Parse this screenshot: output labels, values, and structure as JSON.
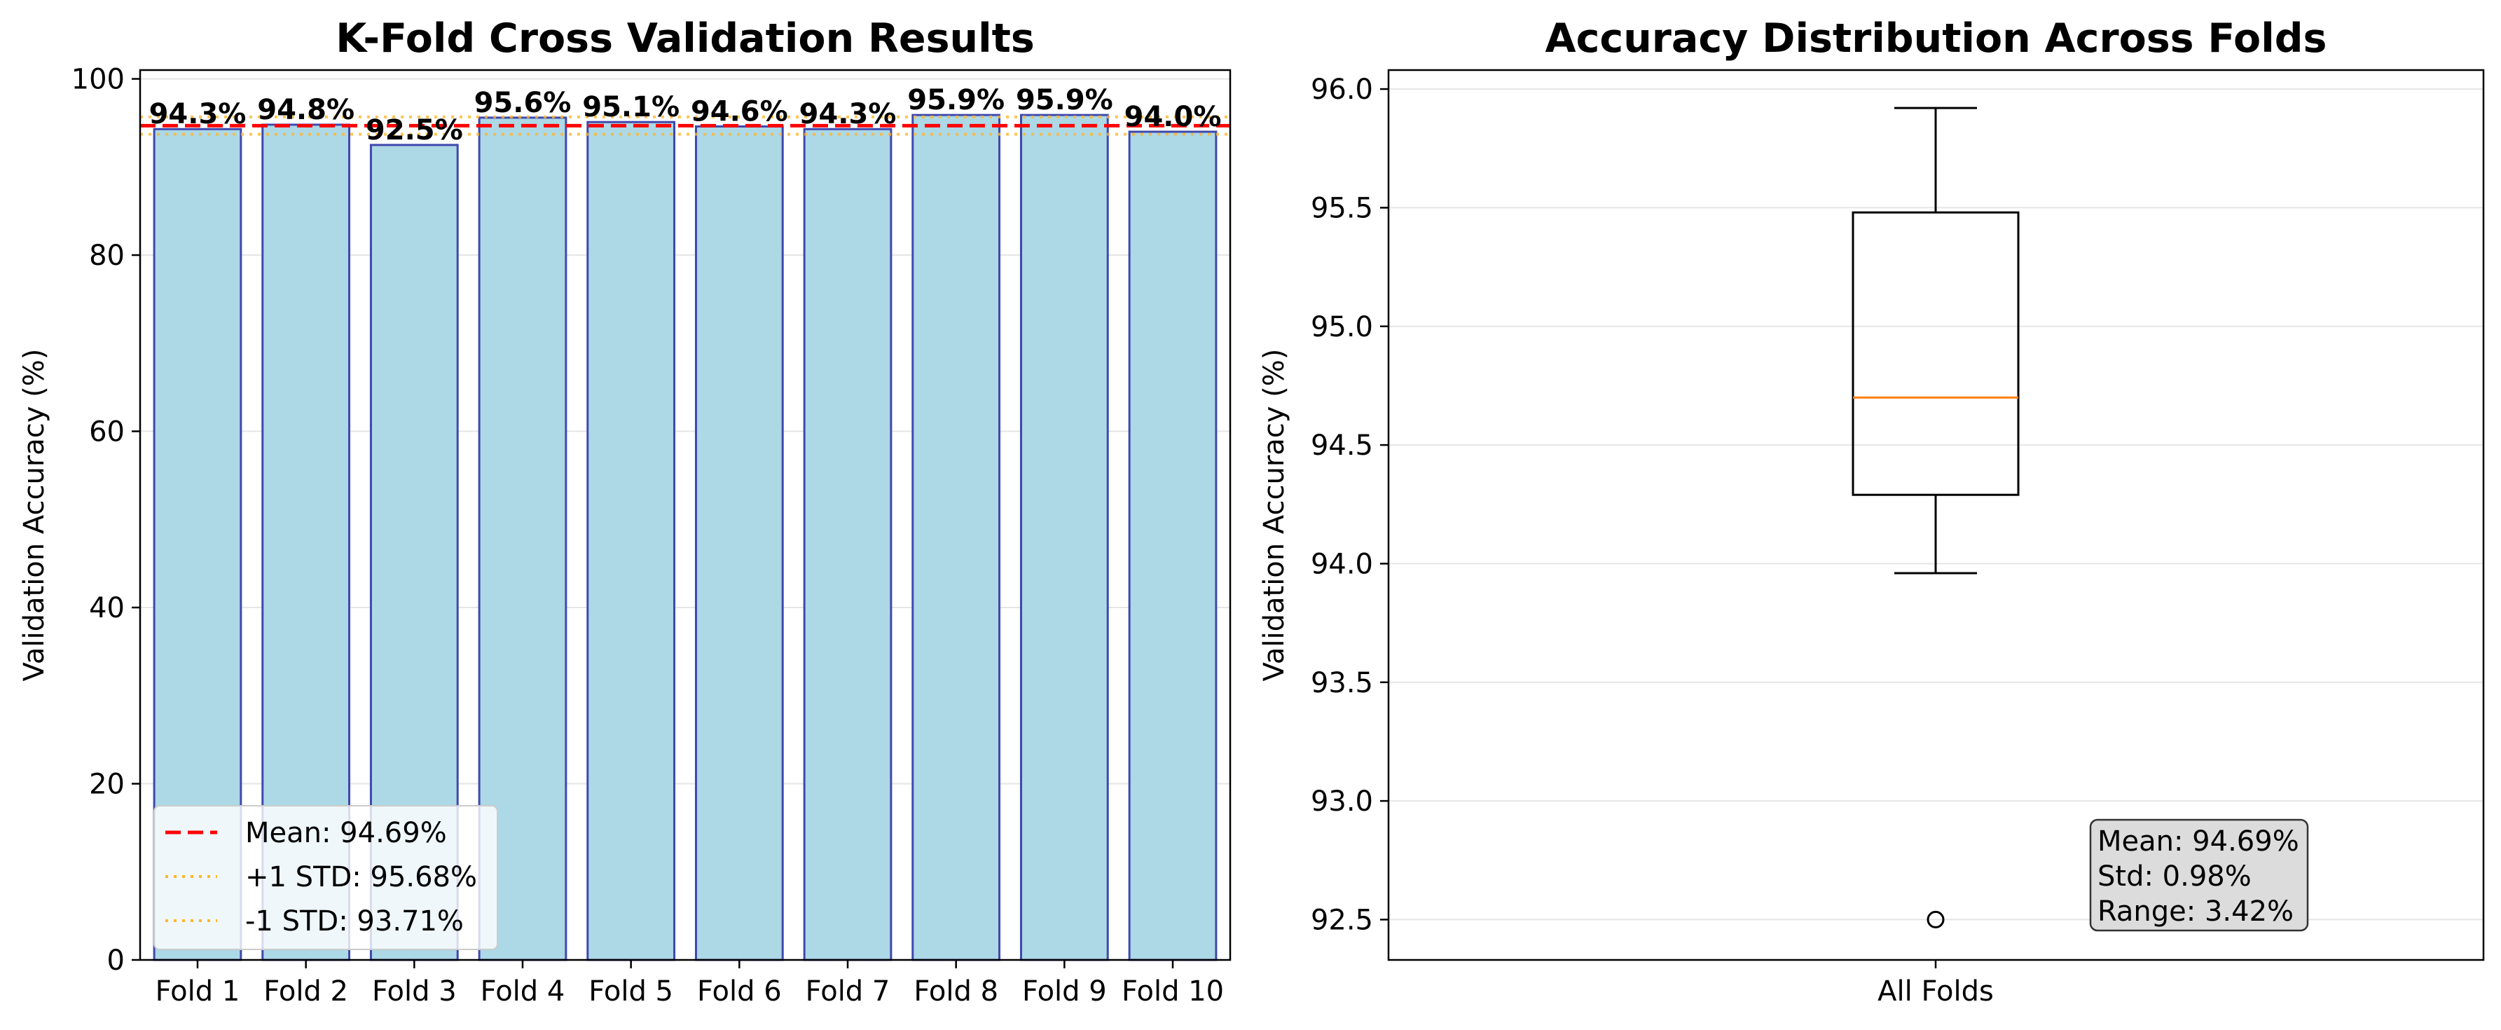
{
  "colors": {
    "bar_fill": "#add8e6",
    "bar_edge": "#3f48ae",
    "mean_line": "#ff0000",
    "std_line": "#ffb52a",
    "grid": "#e5e5e5",
    "median": "#ff7f0e",
    "stats_box_fill": "#dcdcdc"
  },
  "chart_data": [
    {
      "type": "bar",
      "title": "K-Fold Cross Validation Results",
      "xlabel": "",
      "ylabel": "Validation Accuracy (%)",
      "ylim": [
        0,
        101
      ],
      "yticks": [
        0,
        20,
        40,
        60,
        80,
        100
      ],
      "grid": "y",
      "categories": [
        "Fold 1",
        "Fold 2",
        "Fold 3",
        "Fold 4",
        "Fold 5",
        "Fold 6",
        "Fold 7",
        "Fold 8",
        "Fold 9",
        "Fold 10"
      ],
      "values": [
        94.3,
        94.8,
        92.5,
        95.6,
        95.1,
        94.6,
        94.3,
        95.9,
        95.9,
        94.0
      ],
      "value_labels": [
        "94.3%",
        "94.8%",
        "92.5%",
        "95.6%",
        "95.1%",
        "94.6%",
        "94.3%",
        "95.9%",
        "95.9%",
        "94.0%"
      ],
      "reference_lines": [
        {
          "label": "Mean: 94.69%",
          "y": 94.69,
          "style": "dashed",
          "color": "#ff0000"
        },
        {
          "label": "+1 STD: 95.68%",
          "y": 95.68,
          "style": "dotted",
          "color": "#ffb52a"
        },
        {
          "label": "-1 STD: 93.71%",
          "y": 93.71,
          "style": "dotted",
          "color": "#ffb52a"
        }
      ],
      "legend_position": "lower-left"
    },
    {
      "type": "box",
      "title": "Accuracy Distribution Across Folds",
      "xlabel": "",
      "ylabel": "Validation Accuracy (%)",
      "ylim": [
        92.33,
        96.08
      ],
      "yticks": [
        92.5,
        93.0,
        93.5,
        94.0,
        94.5,
        95.0,
        95.5,
        96.0
      ],
      "ytick_labels": [
        "92.5",
        "93.0",
        "93.5",
        "94.0",
        "94.5",
        "95.0",
        "95.5",
        "96.0"
      ],
      "grid": "y",
      "categories": [
        "All Folds"
      ],
      "box": {
        "whisker_low": 93.96,
        "q1": 94.29,
        "median": 94.7,
        "q3": 95.48,
        "whisker_high": 95.92,
        "outliers": [
          92.5
        ]
      },
      "stats_text": [
        "Mean: 94.69%",
        "Std: 0.98%",
        "Range: 3.42%"
      ]
    }
  ]
}
